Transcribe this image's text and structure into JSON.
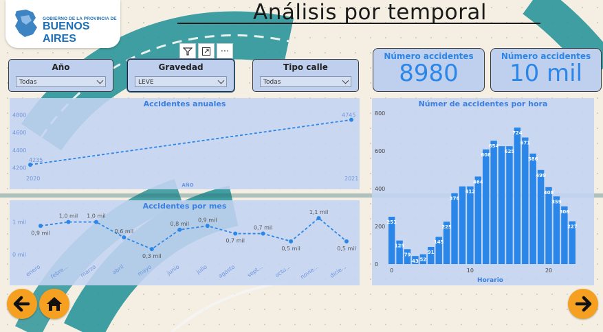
{
  "header": {
    "title": "Análisis por temporal",
    "logo": {
      "line1": "GOBIERNO DE LA PROVINCIA DE",
      "line2": "BUENOS AIRES",
      "icon": "province-map-icon"
    }
  },
  "toolbar": {
    "icons": [
      "filter-icon",
      "focus-mode-icon",
      "more-options-icon"
    ],
    "more_label": "···"
  },
  "slicers": [
    {
      "label": "Año",
      "value": "Todas"
    },
    {
      "label": "Gravedad",
      "value": "LEVE"
    },
    {
      "label": "Tipo calle",
      "value": "Todas"
    }
  ],
  "kpis": [
    {
      "label": "Número accidentes",
      "value": "8980"
    },
    {
      "label": "Número accidentes",
      "value": "10 mil"
    }
  ],
  "colors": {
    "accent": "#2a86e8",
    "panel": "#c4d4f2",
    "nav_button": "#f5a020",
    "road": "#1f8f95"
  },
  "chart_data": [
    {
      "type": "line",
      "title": "Accidentes anuales",
      "xlabel": "AÑO",
      "ylabel": "",
      "categories": [
        "2020",
        "2021"
      ],
      "values": [
        4235,
        4745
      ],
      "data_labels": [
        "4235",
        "4745"
      ],
      "yticks": [
        "4200",
        "4400",
        "4600",
        "4800"
      ],
      "ylim": [
        4150,
        4820
      ],
      "grid": false
    },
    {
      "type": "line",
      "title": "Accidentes por mes",
      "xlabel": "",
      "ylabel": "",
      "categories": [
        "enero",
        "febre...",
        "marzo",
        "abril",
        "mayo",
        "junio",
        "julio",
        "agosto",
        "sept...",
        "octu...",
        "novie...",
        "dicie..."
      ],
      "values": [
        0.9,
        1.0,
        1.0,
        0.6,
        0.3,
        0.8,
        0.9,
        0.7,
        0.7,
        0.5,
        1.1,
        0.5
      ],
      "data_labels": [
        "0,9 mil",
        "1,0 mil",
        "1,0 mil",
        "0,6 mil",
        "0,3 mil",
        "0,8 mil",
        "0,9 mil",
        "0,7 mil",
        "0,7 mil",
        "0,5 mil",
        "1,1 mil",
        "0,5 mil"
      ],
      "yticks": [
        "0 mil",
        "1 mil"
      ],
      "ylim": [
        0,
        1.1
      ],
      "grid": false
    },
    {
      "type": "bar",
      "title": "Númer de accidentes por hora",
      "xlabel": "Horario",
      "ylabel": "",
      "categories": [
        "0",
        "1",
        "2",
        "3",
        "4",
        "5",
        "6",
        "7",
        "8",
        "9",
        "10",
        "11",
        "12",
        "13",
        "14",
        "15",
        "16",
        "17",
        "18",
        "19",
        "20",
        "21",
        "22",
        "23"
      ],
      "values": [
        251,
        125,
        79,
        43,
        52,
        91,
        145,
        225,
        376,
        412,
        412,
        464,
        608,
        654,
        625,
        625,
        724,
        671,
        586,
        499,
        408,
        359,
        306,
        227
      ],
      "data_labels": [
        "251",
        "125",
        "79",
        "43",
        "52",
        "91",
        "145",
        "225",
        "376",
        "",
        "412",
        "464",
        "608",
        "654",
        "",
        "625",
        "724",
        "671",
        "586",
        "499",
        "408",
        "359",
        "306",
        "227"
      ],
      "xticks": [
        "0",
        "10",
        "20"
      ],
      "yticks": [
        "0",
        "200",
        "400",
        "600",
        "800"
      ],
      "ylim": [
        0,
        800
      ],
      "grid": false
    }
  ],
  "nav": {
    "back_icon": "arrow-left-icon",
    "home_icon": "home-icon",
    "next_icon": "arrow-right-icon"
  }
}
